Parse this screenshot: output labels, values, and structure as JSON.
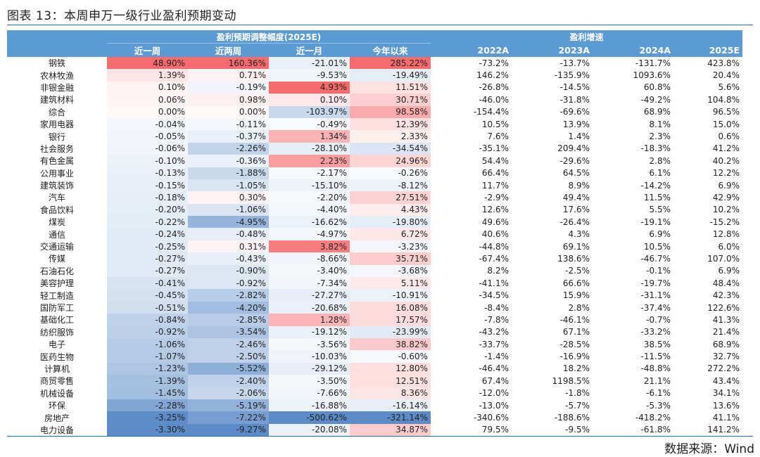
{
  "title": "图表 13：本周申万一级行业盈利预期变动",
  "source": "数据来源：Wind",
  "header": {
    "group1": "盈利预期调整幅度(2025E)",
    "group2": "盈利增速",
    "columns": [
      "",
      "近一周",
      "近两周",
      "近一月",
      "今年以来",
      "2022A",
      "2023A",
      "2024A",
      "2025E"
    ]
  },
  "colors": {
    "header_bg": "#5b9bd5",
    "positive": "#f8696b",
    "negative": "#5a8ac6"
  },
  "rows": [
    [
      "钢铁",
      "48.90%",
      "160.36%",
      "-21.01%",
      "285.22%",
      "-73.2%",
      "-13.7%",
      "-131.7%",
      "423.8%"
    ],
    [
      "农林牧渔",
      "1.39%",
      "0.71%",
      "-9.53%",
      "-19.49%",
      "146.2%",
      "-135.9%",
      "1093.6%",
      "20.4%"
    ],
    [
      "非银金融",
      "0.10%",
      "-0.19%",
      "4.93%",
      "11.51%",
      "-26.8%",
      "-14.5%",
      "60.8%",
      "5.6%"
    ],
    [
      "建筑材料",
      "0.06%",
      "0.98%",
      "0.10%",
      "30.71%",
      "-46.0%",
      "-31.8%",
      "-49.2%",
      "104.8%"
    ],
    [
      "综合",
      "0.00%",
      "0.00%",
      "-103.97%",
      "98.58%",
      "-154.4%",
      "-69.6%",
      "68.9%",
      "96.5%"
    ],
    [
      "家用电器",
      "-0.04%",
      "-0.11%",
      "-0.49%",
      "12.39%",
      "10.5%",
      "13.9%",
      "8.1%",
      "15.0%"
    ],
    [
      "银行",
      "-0.05%",
      "-0.37%",
      "1.34%",
      "2.33%",
      "7.6%",
      "1.4%",
      "2.3%",
      "0.6%"
    ],
    [
      "社会服务",
      "-0.06%",
      "-2.26%",
      "-28.10%",
      "-34.54%",
      "-35.1%",
      "209.4%",
      "-18.3%",
      "41.2%"
    ],
    [
      "有色金属",
      "-0.10%",
      "-0.36%",
      "2.23%",
      "24.96%",
      "54.4%",
      "-29.6%",
      "2.8%",
      "40.2%"
    ],
    [
      "公用事业",
      "-0.13%",
      "-1.88%",
      "-2.17%",
      "-0.26%",
      "66.4%",
      "64.5%",
      "6.1%",
      "12.2%"
    ],
    [
      "建筑装饰",
      "-0.15%",
      "-1.05%",
      "-15.10%",
      "-8.12%",
      "11.7%",
      "8.9%",
      "-14.2%",
      "6.9%"
    ],
    [
      "汽车",
      "-0.18%",
      "0.30%",
      "-2.20%",
      "27.51%",
      "-2.9%",
      "49.4%",
      "11.5%",
      "42.9%"
    ],
    [
      "食品饮料",
      "-0.20%",
      "-1.06%",
      "-4.40%",
      "4.43%",
      "12.6%",
      "17.6%",
      "5.5%",
      "10.2%"
    ],
    [
      "煤炭",
      "-0.22%",
      "-4.95%",
      "-16.62%",
      "-19.80%",
      "49.6%",
      "-26.4%",
      "-19.1%",
      "-15.2%"
    ],
    [
      "通信",
      "-0.24%",
      "-0.48%",
      "-4.97%",
      "6.72%",
      "40.6%",
      "4.3%",
      "6.9%",
      "12.8%"
    ],
    [
      "交通运输",
      "-0.25%",
      "0.31%",
      "3.82%",
      "-3.23%",
      "-44.8%",
      "69.1%",
      "10.5%",
      "6.0%"
    ],
    [
      "传媒",
      "-0.27%",
      "-0.43%",
      "-8.66%",
      "35.71%",
      "-67.4%",
      "138.6%",
      "-46.7%",
      "107.0%"
    ],
    [
      "石油石化",
      "-0.27%",
      "-0.90%",
      "-3.40%",
      "-3.68%",
      "8.2%",
      "-2.5%",
      "-0.1%",
      "6.9%"
    ],
    [
      "美容护理",
      "-0.41%",
      "-0.92%",
      "-7.34%",
      "5.11%",
      "-41.1%",
      "66.6%",
      "-19.7%",
      "48.4%"
    ],
    [
      "轻工制造",
      "-0.45%",
      "-2.82%",
      "-27.27%",
      "-10.91%",
      "-34.5%",
      "15.9%",
      "-31.1%",
      "42.3%"
    ],
    [
      "国防军工",
      "-0.51%",
      "-4.20%",
      "-20.68%",
      "16.08%",
      "-8.4%",
      "2.8%",
      "-37.4%",
      "122.6%"
    ],
    [
      "基础化工",
      "-0.84%",
      "-2.85%",
      "1.28%",
      "17.57%",
      "-7.8%",
      "-46.1%",
      "-0.7%",
      "41.3%"
    ],
    [
      "纺织服饰",
      "-0.92%",
      "-3.54%",
      "-19.12%",
      "-23.99%",
      "-43.2%",
      "67.1%",
      "-33.2%",
      "21.4%"
    ],
    [
      "电子",
      "-1.06%",
      "-2.46%",
      "-3.56%",
      "38.82%",
      "-33.7%",
      "-28.5%",
      "38.5%",
      "68.9%"
    ],
    [
      "医药生物",
      "-1.07%",
      "-2.50%",
      "-10.03%",
      "-0.60%",
      "-1.4%",
      "-16.9%",
      "-11.5%",
      "32.7%"
    ],
    [
      "计算机",
      "-1.23%",
      "-5.52%",
      "-29.12%",
      "12.80%",
      "-46.4%",
      "18.2%",
      "-48.8%",
      "272.2%"
    ],
    [
      "商贸零售",
      "-1.39%",
      "-2.40%",
      "-3.50%",
      "12.51%",
      "67.4%",
      "1198.5%",
      "21.1%",
      "43.4%"
    ],
    [
      "机械设备",
      "-1.45%",
      "-2.06%",
      "-7.66%",
      "8.36%",
      "-12.0%",
      "-1.8%",
      "-6.1%",
      "34.1%"
    ],
    [
      "环保",
      "-2.28%",
      "-5.19%",
      "-16.88%",
      "-16.14%",
      "-13.0%",
      "-5.7%",
      "-5.3%",
      "13.6%"
    ],
    [
      "房地产",
      "-3.25%",
      "-7.22%",
      "-500.62%",
      "-321.14%",
      "-340.6%",
      "-188.6%",
      "-418.2%",
      "41.1%"
    ],
    [
      "电力设备",
      "-3.30%",
      "-9.27%",
      "-20.08%",
      "34.87%",
      "79.5%",
      "-9.5%",
      "-61.8%",
      "141.2%"
    ]
  ]
}
